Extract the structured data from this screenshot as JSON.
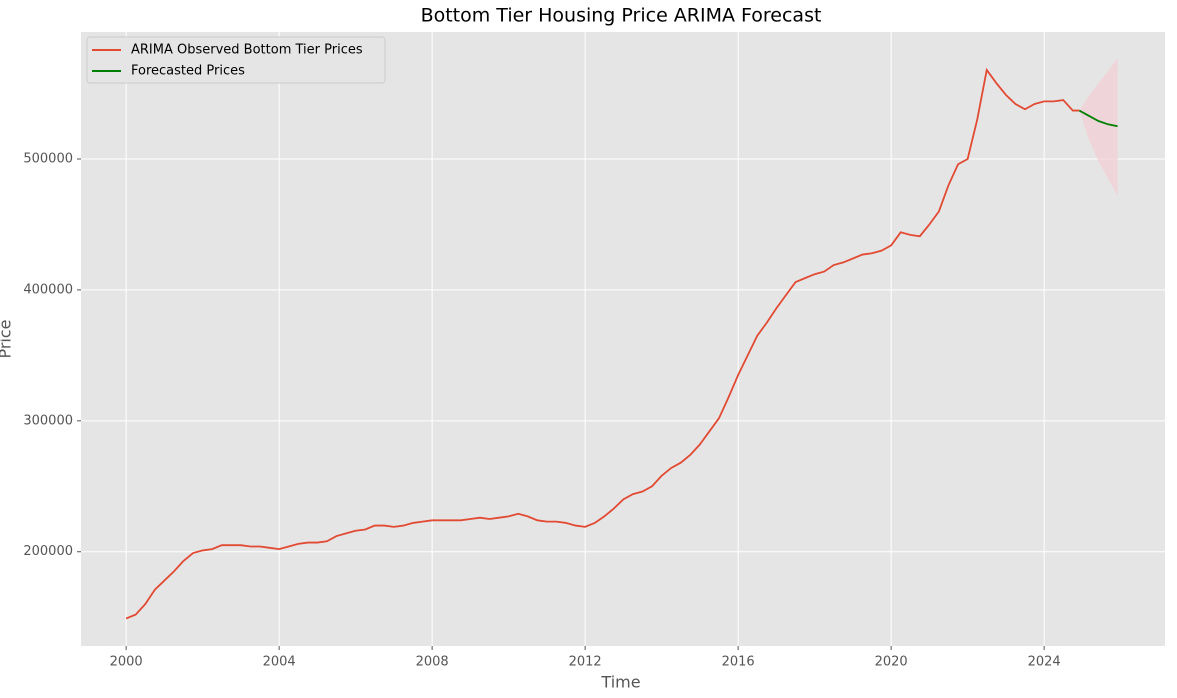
{
  "chart_data": {
    "type": "line",
    "title": "Bottom Tier Housing Price ARIMA Forecast",
    "x_label": "Time",
    "y_label": "Price",
    "xlim": [
      1998.82,
      2027.16
    ],
    "ylim": [
      128000,
      597000
    ],
    "xticks": [
      2000,
      2004,
      2008,
      2012,
      2016,
      2020,
      2024
    ],
    "yticks": [
      200000,
      300000,
      400000,
      500000
    ],
    "grid": true,
    "legend": "upper left",
    "series": [
      {
        "name": "ARIMA Observed Bottom Tier Prices",
        "color": "#e24a33",
        "x": [
          2000.0,
          2000.25,
          2000.5,
          2000.75,
          2001.0,
          2001.25,
          2001.5,
          2001.75,
          2002.0,
          2002.25,
          2002.5,
          2002.75,
          2003.0,
          2003.25,
          2003.5,
          2003.75,
          2004.0,
          2004.25,
          2004.5,
          2004.75,
          2005.0,
          2005.25,
          2005.5,
          2005.75,
          2006.0,
          2006.25,
          2006.5,
          2006.75,
          2007.0,
          2007.25,
          2007.5,
          2007.75,
          2008.0,
          2008.25,
          2008.5,
          2008.75,
          2009.0,
          2009.25,
          2009.5,
          2009.75,
          2010.0,
          2010.25,
          2010.5,
          2010.75,
          2011.0,
          2011.25,
          2011.5,
          2011.75,
          2012.0,
          2012.25,
          2012.5,
          2012.75,
          2013.0,
          2013.25,
          2013.5,
          2013.75,
          2014.0,
          2014.25,
          2014.5,
          2014.75,
          2015.0,
          2015.25,
          2015.5,
          2015.75,
          2016.0,
          2016.25,
          2016.5,
          2016.75,
          2017.0,
          2017.25,
          2017.5,
          2017.75,
          2018.0,
          2018.25,
          2018.5,
          2018.75,
          2019.0,
          2019.25,
          2019.5,
          2019.75,
          2020.0,
          2020.25,
          2020.5,
          2020.75,
          2021.0,
          2021.25,
          2021.5,
          2021.75,
          2022.0,
          2022.25,
          2022.5,
          2022.75,
          2023.0,
          2023.25,
          2023.5,
          2023.75,
          2024.0,
          2024.25,
          2024.5,
          2024.75,
          2024.92
        ],
        "values": [
          149000,
          152000,
          160000,
          171000,
          178000,
          185000,
          193000,
          199000,
          201000,
          202000,
          205000,
          205000,
          205000,
          204000,
          204000,
          203000,
          202000,
          204000,
          206000,
          207000,
          207000,
          208000,
          212000,
          214000,
          216000,
          217000,
          220000,
          220000,
          219000,
          220000,
          222000,
          223000,
          224000,
          224000,
          224000,
          224000,
          225000,
          226000,
          225000,
          226000,
          227000,
          229000,
          227000,
          224000,
          223000,
          223000,
          222000,
          220000,
          219000,
          222000,
          227000,
          233000,
          240000,
          244000,
          246000,
          250000,
          258000,
          264000,
          268000,
          274000,
          282000,
          292000,
          302000,
          318000,
          335000,
          350000,
          365000,
          375000,
          386000,
          396000,
          406000,
          409000,
          412000,
          414000,
          419000,
          421000,
          424000,
          427000,
          428000,
          430000,
          434000,
          444000,
          442000,
          441000,
          450000,
          460000,
          480000,
          496000,
          500000,
          530000,
          568000,
          558000,
          549000,
          542000,
          538000,
          542000,
          544000,
          544000,
          545000,
          537000,
          537000
        ]
      },
      {
        "name": "Forecasted Prices",
        "color": "#008000",
        "x": [
          2024.92,
          2025.17,
          2025.42,
          2025.67,
          2025.92
        ],
        "values": [
          537000,
          533000,
          529000,
          526500,
          525000
        ],
        "ci_lower": [
          537000,
          515000,
          498000,
          485000,
          472000
        ],
        "ci_upper": [
          537000,
          548000,
          558000,
          567000,
          577000
        ],
        "ci_color": "#f4cfd6"
      }
    ]
  }
}
